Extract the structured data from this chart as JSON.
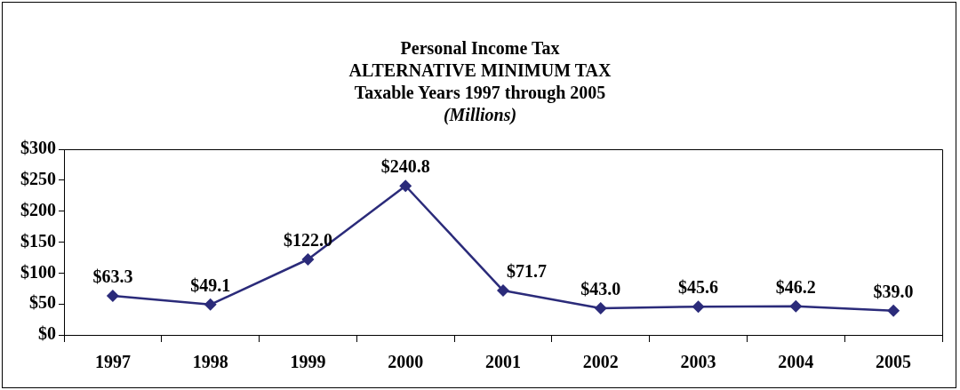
{
  "chart_data": {
    "type": "line",
    "title": "Personal Income Tax\nALTERNATIVE MINIMUM TAX\nTaxable Years 1997 through 2005",
    "subtitle": "(Millions)",
    "categories": [
      "1997",
      "1998",
      "1999",
      "2000",
      "2001",
      "2002",
      "2003",
      "2004",
      "2005"
    ],
    "series": [
      {
        "color": "#2b2b7a",
        "values": [
          63.3,
          49.1,
          122.0,
          240.8,
          71.7,
          43.0,
          45.6,
          46.2,
          39.0
        ],
        "value_labels": [
          "$63.3",
          "$49.1",
          "$122.0",
          "$240.8",
          "$71.7",
          "$43.0",
          "$45.6",
          "$46.2",
          "$39.0"
        ]
      }
    ],
    "ylim": [
      0,
      300
    ],
    "yticks": [
      {
        "value": 0,
        "label": "$0"
      },
      {
        "value": 50,
        "label": "$50"
      },
      {
        "value": 100,
        "label": "$100"
      },
      {
        "value": 150,
        "label": "$150"
      },
      {
        "value": 200,
        "label": "$200"
      },
      {
        "value": 250,
        "label": "$250"
      },
      {
        "value": 300,
        "label": "$300"
      }
    ],
    "marker": "diamond",
    "line_style": "solid",
    "grid": false,
    "legend": false
  }
}
